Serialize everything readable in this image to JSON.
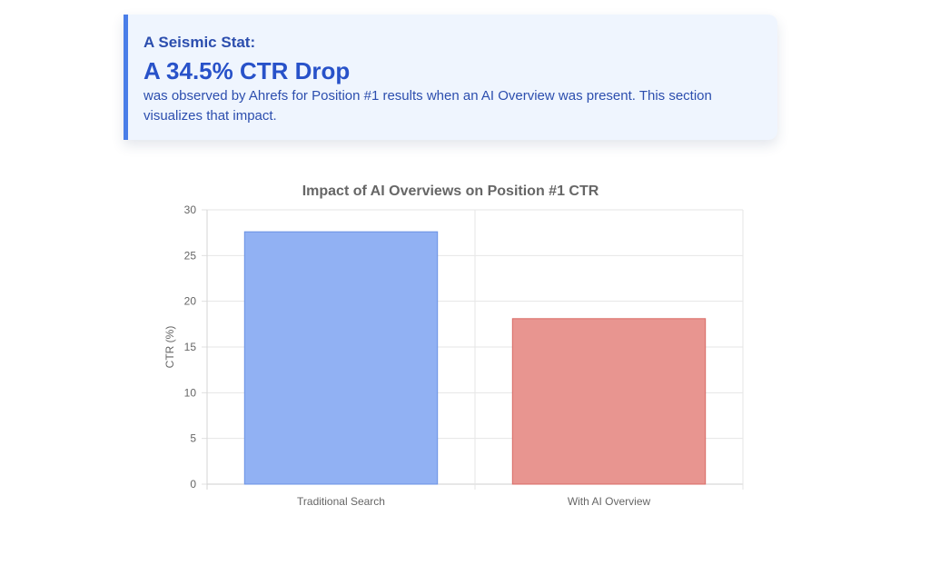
{
  "stat": {
    "kicker": "A Seismic Stat:",
    "headline": "A 34.5% CTR Drop",
    "body": "was observed by Ahrefs for Position #1 results when an AI Overview was present. This section visualizes that impact."
  },
  "colors": {
    "accent": "#4a7ee8",
    "card_bg": "#eff5fe",
    "bar_traditional": "#91b1f3",
    "bar_traditional_border": "#6a91e3",
    "bar_ai": "#e89590",
    "bar_ai_border": "#d86b66"
  },
  "chart_data": {
    "type": "bar",
    "title": "Impact of AI Overviews on Position #1 CTR",
    "xlabel": "",
    "ylabel": "CTR (%)",
    "categories": [
      "Traditional Search",
      "With AI Overview"
    ],
    "values": [
      27.6,
      18.1
    ],
    "ylim": [
      0,
      30
    ],
    "yticks": [
      0,
      5,
      10,
      15,
      20,
      25,
      30
    ],
    "grid": true,
    "legend": "none"
  }
}
